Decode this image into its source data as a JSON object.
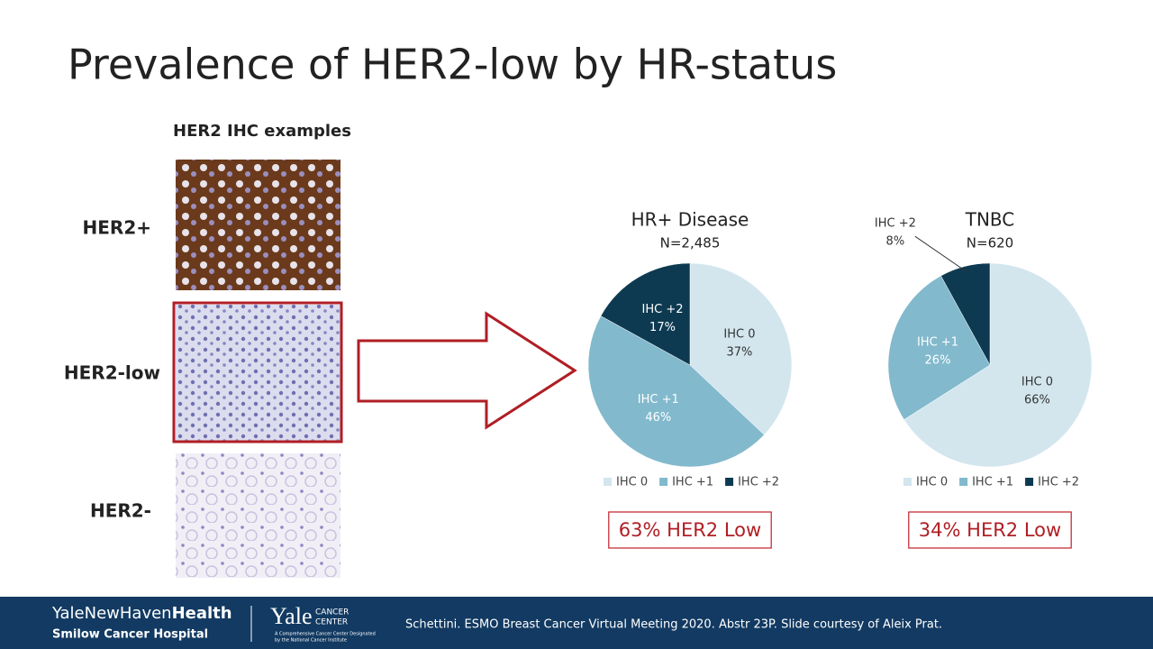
{
  "slide": {
    "title": "Prevalence of HER2-low by HR-status",
    "ihc_heading": "HER2 IHC examples",
    "ihc_labels": [
      "HER2+",
      "HER2-low",
      "HER2-"
    ],
    "footer": {
      "brand_light": "YaleNewHaven",
      "brand_bold": "Health",
      "hospital": "Smilow Cancer Hospital",
      "yale": "Yale",
      "cancer": "CANCER",
      "center": "CENTER",
      "yale_note_1": "A Comprehensive Cancer Center Designated",
      "yale_note_2": "by the National Cancer Institute",
      "citation": "Schettini. ESMO Breast Cancer Virtual Meeting 2020. Abstr 23P. Slide courtesy of Aleix Prat."
    }
  },
  "chart_data": [
    {
      "type": "pie",
      "title": "HR+ Disease",
      "subtitle": "N=2,485",
      "categories": [
        "IHC 0",
        "IHC +1",
        "IHC +2"
      ],
      "values": [
        37,
        46,
        17
      ],
      "value_labels": [
        "37%",
        "46%",
        "17%"
      ],
      "colors": [
        "#d3e6ee",
        "#82b9cd",
        "#0e3a51"
      ],
      "legend": "bottom",
      "annotation": "63% HER2 Low"
    },
    {
      "type": "pie",
      "title": "TNBC",
      "subtitle": "N=620",
      "categories": [
        "IHC 0",
        "IHC +1",
        "IHC +2"
      ],
      "values": [
        66,
        26,
        8
      ],
      "value_labels": [
        "66%",
        "26%",
        "8%"
      ],
      "colors": [
        "#d3e6ee",
        "#82b9cd",
        "#0e3a51"
      ],
      "legend": "bottom",
      "annotation": "34% HER2 Low"
    }
  ]
}
